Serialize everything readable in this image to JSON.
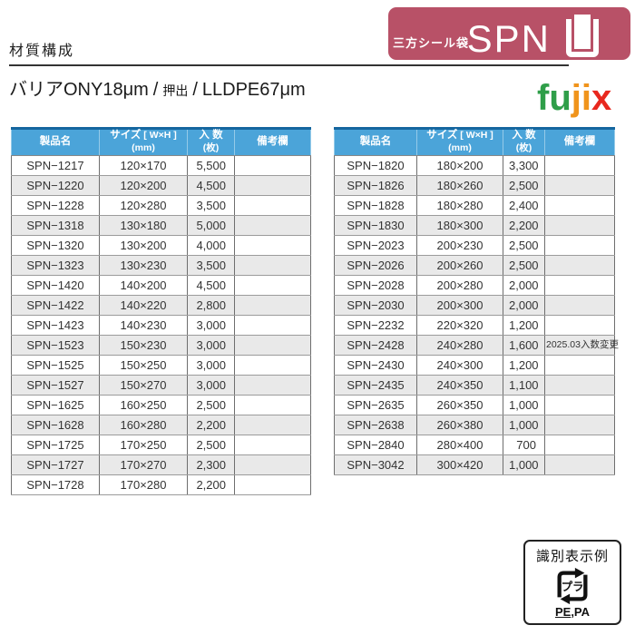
{
  "page": {
    "section_title": "材質構成",
    "material": {
      "film1": "バリアONY18μm",
      "separator": "/",
      "process": "押出",
      "film2": "LLDPE67μm"
    }
  },
  "badge": {
    "category": "三方シール袋",
    "code": "SPN"
  },
  "logo": {
    "text": "fujix",
    "segments": [
      {
        "text": "fu",
        "color": "#2f9e49"
      },
      {
        "text": "ji",
        "color": "#f0941c"
      },
      {
        "text": "x",
        "color": "#e8281e"
      }
    ]
  },
  "tables": {
    "headers": {
      "product": "製品名",
      "size_main": "サイズ",
      "size_bracket": " [ W×H ]",
      "size_unit": "(mm)",
      "qty_main": "入 数",
      "qty_unit": "(枚)",
      "remark": "備考欄"
    },
    "left_rows": [
      {
        "name": "SPN−1217",
        "size": "120×170",
        "qty": "5,500",
        "remark": ""
      },
      {
        "name": "SPN−1220",
        "size": "120×200",
        "qty": "4,500",
        "remark": ""
      },
      {
        "name": "SPN−1228",
        "size": "120×280",
        "qty": "3,500",
        "remark": ""
      },
      {
        "name": "SPN−1318",
        "size": "130×180",
        "qty": "5,000",
        "remark": ""
      },
      {
        "name": "SPN−1320",
        "size": "130×200",
        "qty": "4,000",
        "remark": ""
      },
      {
        "name": "SPN−1323",
        "size": "130×230",
        "qty": "3,500",
        "remark": ""
      },
      {
        "name": "SPN−1420",
        "size": "140×200",
        "qty": "4,500",
        "remark": ""
      },
      {
        "name": "SPN−1422",
        "size": "140×220",
        "qty": "2,800",
        "remark": ""
      },
      {
        "name": "SPN−1423",
        "size": "140×230",
        "qty": "3,000",
        "remark": ""
      },
      {
        "name": "SPN−1523",
        "size": "150×230",
        "qty": "3,000",
        "remark": ""
      },
      {
        "name": "SPN−1525",
        "size": "150×250",
        "qty": "3,000",
        "remark": ""
      },
      {
        "name": "SPN−1527",
        "size": "150×270",
        "qty": "3,000",
        "remark": ""
      },
      {
        "name": "SPN−1625",
        "size": "160×250",
        "qty": "2,500",
        "remark": ""
      },
      {
        "name": "SPN−1628",
        "size": "160×280",
        "qty": "2,200",
        "remark": ""
      },
      {
        "name": "SPN−1725",
        "size": "170×250",
        "qty": "2,500",
        "remark": ""
      },
      {
        "name": "SPN−1727",
        "size": "170×270",
        "qty": "2,300",
        "remark": ""
      },
      {
        "name": "SPN−1728",
        "size": "170×280",
        "qty": "2,200",
        "remark": ""
      }
    ],
    "right_rows": [
      {
        "name": "SPN−1820",
        "size": "180×200",
        "qty": "3,300",
        "remark": ""
      },
      {
        "name": "SPN−1826",
        "size": "180×260",
        "qty": "2,500",
        "remark": ""
      },
      {
        "name": "SPN−1828",
        "size": "180×280",
        "qty": "2,400",
        "remark": ""
      },
      {
        "name": "SPN−1830",
        "size": "180×300",
        "qty": "2,200",
        "remark": ""
      },
      {
        "name": "SPN−2023",
        "size": "200×230",
        "qty": "2,500",
        "remark": ""
      },
      {
        "name": "SPN−2026",
        "size": "200×260",
        "qty": "2,500",
        "remark": ""
      },
      {
        "name": "SPN−2028",
        "size": "200×280",
        "qty": "2,000",
        "remark": ""
      },
      {
        "name": "SPN−2030",
        "size": "200×300",
        "qty": "2,000",
        "remark": ""
      },
      {
        "name": "SPN−2232",
        "size": "220×320",
        "qty": "1,200",
        "remark": ""
      },
      {
        "name": "SPN−2428",
        "size": "240×280",
        "qty": "1,600",
        "remark": "2025.03入数変更"
      },
      {
        "name": "SPN−2430",
        "size": "240×300",
        "qty": "1,200",
        "remark": ""
      },
      {
        "name": "SPN−2435",
        "size": "240×350",
        "qty": "1,100",
        "remark": ""
      },
      {
        "name": "SPN−2635",
        "size": "260×350",
        "qty": "1,000",
        "remark": ""
      },
      {
        "name": "SPN−2638",
        "size": "260×380",
        "qty": "1,000",
        "remark": ""
      },
      {
        "name": "SPN−2840",
        "size": "280×400",
        "qty": "700",
        "remark": ""
      },
      {
        "name": "SPN−3042",
        "size": "300×420",
        "qty": "1,000",
        "remark": ""
      }
    ]
  },
  "id_box": {
    "title": "識別表示例",
    "mark_label": "プラ",
    "code_underlined": "PE",
    "code_rest": ",PA"
  },
  "theme": {
    "badge_bg": "#b85167",
    "header_bg": "#4ba4d9",
    "header_top_bar": "#15669f",
    "row_alt_bg": "#e9e9e9",
    "rule_color": "#333333",
    "logo_green": "#2f9e49",
    "logo_orange": "#f0941c",
    "logo_red": "#e8281e"
  }
}
